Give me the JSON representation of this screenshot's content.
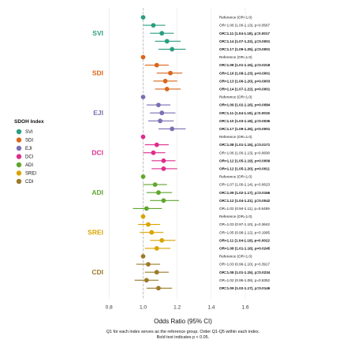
{
  "chart_data": {
    "type": "forest",
    "xlabel": "Odds Ratio (95% CI)",
    "xlim": [
      0.72,
      1.72
    ],
    "xticks": [
      "0.8",
      "1.0",
      "1.2",
      "1.4",
      "1.6"
    ],
    "reference_line": 1.0,
    "grid": true,
    "legend_title": "SDOH Index",
    "legend_placement": "left",
    "caption_lines": [
      "Q1 for each index serves as the reference group. Order Q1-Q5 within each index.",
      "Bold text indicates p < 0.05."
    ],
    "groups": [
      {
        "name": "SVI",
        "color": "#2a9d80",
        "rows": [
          {
            "or": 1.0,
            "lo": 1.0,
            "hi": 1.0,
            "text": "Reference (OR=1.0)",
            "bold": false,
            "ref": true
          },
          {
            "or": 1.06,
            "lo": 1.0,
            "hi": 1.13,
            "text": "OR=1.06 (1.00-1.13), p=0.0567",
            "bold": false
          },
          {
            "or": 1.11,
            "lo": 1.04,
            "hi": 1.18,
            "text": "OR=1.11 (1.04-1.18), p=0.0017",
            "bold": true
          },
          {
            "or": 1.14,
            "lo": 1.07,
            "hi": 1.22,
            "text": "OR=1.14 (1.07-1.22), p=0.0001",
            "bold": true
          },
          {
            "or": 1.17,
            "lo": 1.09,
            "hi": 1.25,
            "text": "OR=1.17 (1.09-1.25), p=0.0001",
            "bold": true
          }
        ]
      },
      {
        "name": "SDI",
        "color": "#d9661c",
        "rows": [
          {
            "or": 1.0,
            "lo": 1.0,
            "hi": 1.0,
            "text": "Reference (OR=1.0)",
            "bold": false,
            "ref": true
          },
          {
            "or": 1.08,
            "lo": 1.01,
            "hi": 1.15,
            "text": "OR=1.08 (1.01-1.15), p=0.0218",
            "bold": true
          },
          {
            "or": 1.16,
            "lo": 1.08,
            "hi": 1.23,
            "text": "OR=1.16 (1.08-1.23), p<0.0001",
            "bold": true
          },
          {
            "or": 1.13,
            "lo": 1.06,
            "hi": 1.2,
            "text": "OR=1.13 (1.06-1.20), p=0.0003",
            "bold": true
          },
          {
            "or": 1.14,
            "lo": 1.07,
            "hi": 1.22,
            "text": "OR=1.14 (1.07-1.22), p=0.0001",
            "bold": true
          }
        ]
      },
      {
        "name": "EJI",
        "color": "#7a6fb3",
        "rows": [
          {
            "or": 1.0,
            "lo": 1.0,
            "hi": 1.0,
            "text": "Reference (OR=1.0)",
            "bold": false,
            "ref": true
          },
          {
            "or": 1.09,
            "lo": 1.02,
            "hi": 1.16,
            "text": "OR=1.09 (1.02-1.16), p=0.0084",
            "bold": true
          },
          {
            "or": 1.11,
            "lo": 1.04,
            "hi": 1.19,
            "text": "OR=1.11 (1.04-1.19), p=0.0015",
            "bold": true
          },
          {
            "or": 1.1,
            "lo": 1.03,
            "hi": 1.18,
            "text": "OR=1.10 (1.03-1.18), p=0.0036",
            "bold": true
          },
          {
            "or": 1.17,
            "lo": 1.09,
            "hi": 1.25,
            "text": "OR=1.17 (1.09-1.25), p<0.0001",
            "bold": true
          }
        ]
      },
      {
        "name": "DCI",
        "color": "#de2d8e",
        "rows": [
          {
            "or": 1.0,
            "lo": 1.0,
            "hi": 1.0,
            "text": "Reference (OR=1.0)",
            "bold": false,
            "ref": true
          },
          {
            "or": 1.08,
            "lo": 1.01,
            "hi": 1.15,
            "text": "OR=1.08 (1.01-1.15), p=0.0171",
            "bold": true
          },
          {
            "or": 1.06,
            "lo": 1.0,
            "hi": 1.13,
            "text": "OR=1.06 (1.00-1.13), p=0.0600",
            "bold": false
          },
          {
            "or": 1.12,
            "lo": 1.05,
            "hi": 1.19,
            "text": "OR=1.12 (1.05-1.19), p=0.0009",
            "bold": true
          },
          {
            "or": 1.12,
            "lo": 1.05,
            "hi": 1.2,
            "text": "OR=1.12 (1.05-1.20), p=0.0011",
            "bold": true
          }
        ]
      },
      {
        "name": "ADI",
        "color": "#5fa62e",
        "rows": [
          {
            "or": 1.0,
            "lo": 1.0,
            "hi": 1.0,
            "text": "Reference (OR=1.0)",
            "bold": false,
            "ref": true
          },
          {
            "or": 1.07,
            "lo": 1.0,
            "hi": 1.14,
            "text": "OR=1.07 (1.00-1.14), p=0.0623",
            "bold": false
          },
          {
            "or": 1.09,
            "lo": 1.02,
            "hi": 1.17,
            "text": "OR=1.09 (1.02-1.17), p=0.0166",
            "bold": true
          },
          {
            "or": 1.12,
            "lo": 1.04,
            "hi": 1.21,
            "text": "OR=1.12 (1.04-1.21), p=0.0042",
            "bold": true
          },
          {
            "or": 1.02,
            "lo": 0.94,
            "hi": 1.11,
            "text": "OR=1.02 (0.94-1.11), p=0.6459",
            "bold": false
          }
        ]
      },
      {
        "name": "SREI",
        "color": "#d8a400",
        "rows": [
          {
            "or": 1.0,
            "lo": 1.0,
            "hi": 1.0,
            "text": "Reference (OR=1.0)",
            "bold": false,
            "ref": true
          },
          {
            "or": 1.03,
            "lo": 0.97,
            "hi": 1.1,
            "text": "OR=1.03 (0.97-1.10), p=0.3642",
            "bold": false
          },
          {
            "or": 1.05,
            "lo": 0.98,
            "hi": 1.12,
            "text": "OR=1.05 (0.98-1.12), p=0.1995",
            "bold": false
          },
          {
            "or": 1.11,
            "lo": 1.04,
            "hi": 1.19,
            "text": "OR=1.11 (1.04-1.19), p=0.0022",
            "bold": true
          },
          {
            "or": 1.08,
            "lo": 1.01,
            "hi": 1.16,
            "text": "OR=1.08 (1.01-1.16), p=0.0245",
            "bold": true
          }
        ]
      },
      {
        "name": "CDI",
        "color": "#9c7a2a",
        "rows": [
          {
            "or": 1.0,
            "lo": 1.0,
            "hi": 1.0,
            "text": "Reference (OR=1.0)",
            "bold": false,
            "ref": true
          },
          {
            "or": 1.03,
            "lo": 0.96,
            "hi": 1.1,
            "text": "OR=1.03 (0.96-1.10), p=0.3917",
            "bold": false
          },
          {
            "or": 1.08,
            "lo": 1.01,
            "hi": 1.15,
            "text": "OR=1.08 (1.01-1.15), p=0.0234",
            "bold": true
          },
          {
            "or": 1.02,
            "lo": 0.95,
            "hi": 1.09,
            "text": "OR=1.02 (0.95-1.09), p=0.5352",
            "bold": false
          },
          {
            "or": 1.09,
            "lo": 1.02,
            "hi": 1.17,
            "text": "OR=1.09 (1.02-1.17), p=0.0146",
            "bold": true
          }
        ]
      }
    ]
  }
}
